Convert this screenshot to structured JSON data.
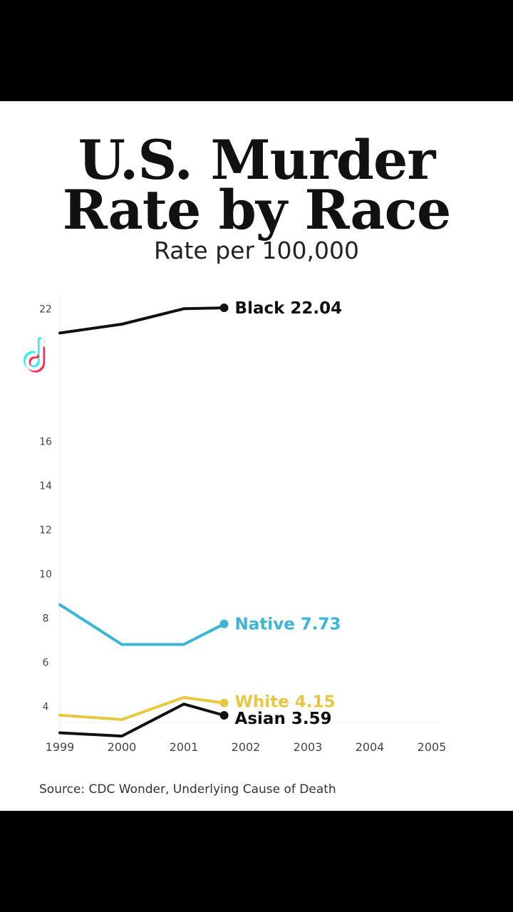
{
  "title_line1": "U.S. Murder",
  "title_line2": "Rate by Race",
  "subtitle": "Rate per 100,000",
  "source": "Source: CDC Wonder, Underlying Cause of Death",
  "colors": {
    "background": "#ffffff",
    "Black": "#111111",
    "Native": "#3bb5d6",
    "White": "#e8c840",
    "Asian": "#111111"
  },
  "chart_data": {
    "type": "line",
    "title": "U.S. Murder Rate by Race",
    "subtitle": "Rate per 100,000",
    "xlim": [
      1999,
      2005
    ],
    "ylim": [
      2.3,
      22.3
    ],
    "x_ticks": [
      "1999",
      "2000",
      "2001",
      "2002",
      "2003",
      "2004",
      "2005"
    ],
    "y_ticks": [
      "22",
      "16",
      "14",
      "12",
      "10",
      "8",
      "6",
      "4"
    ],
    "grid": false,
    "series": [
      {
        "name": "Black",
        "label": "Black 22.04",
        "color": "#111111",
        "points": [
          [
            1999,
            20.9
          ],
          [
            2000,
            21.3
          ],
          [
            2001,
            22.0
          ],
          [
            2001.65,
            22.04
          ]
        ]
      },
      {
        "name": "Native",
        "label": "Native 7.73",
        "color": "#3bb5d6",
        "points": [
          [
            1999,
            8.6
          ],
          [
            2000,
            6.8
          ],
          [
            2001,
            6.8
          ],
          [
            2001.65,
            7.73
          ]
        ]
      },
      {
        "name": "White",
        "label": "White 4.15",
        "color": "#e8c840",
        "points": [
          [
            1999,
            3.6
          ],
          [
            2000,
            3.4
          ],
          [
            2001,
            4.4
          ],
          [
            2001.65,
            4.15
          ]
        ]
      },
      {
        "name": "Asian",
        "label": "Asian 3.59",
        "color": "#111111",
        "points": [
          [
            1999,
            2.8
          ],
          [
            2000,
            2.65
          ],
          [
            2001,
            4.1
          ],
          [
            2001.65,
            3.59
          ]
        ]
      }
    ]
  }
}
